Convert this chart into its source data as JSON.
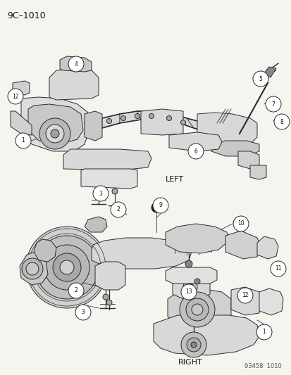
{
  "title": "9C–1010",
  "bg_color": "#f5f5f0",
  "line_color": "#2a2a2a",
  "text_color": "#111111",
  "label_left": "LEFT",
  "label_right": "RIGHT",
  "footer": "93458  1010",
  "callout_r": 0.018,
  "callout_fs": 5.5
}
